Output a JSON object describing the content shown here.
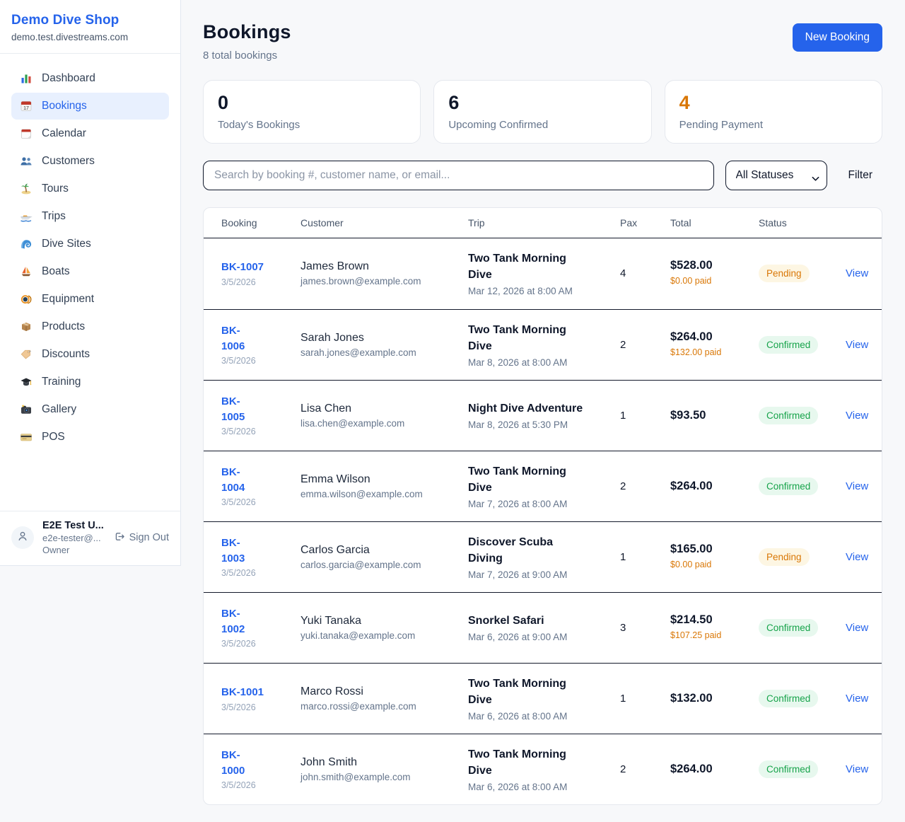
{
  "brand": {
    "name": "Demo Dive Shop",
    "domain": "demo.test.divestreams.com"
  },
  "sidebar": {
    "items": [
      {
        "label": "Dashboard",
        "icon": "bar-chart-icon",
        "active": false
      },
      {
        "label": "Bookings",
        "icon": "calendar-17-icon",
        "active": true
      },
      {
        "label": "Calendar",
        "icon": "tear-calendar-icon",
        "active": false
      },
      {
        "label": "Customers",
        "icon": "people-icon",
        "active": false
      },
      {
        "label": "Tours",
        "icon": "island-icon",
        "active": false
      },
      {
        "label": "Trips",
        "icon": "speedboat-icon",
        "active": false
      },
      {
        "label": "Dive Sites",
        "icon": "wave-icon",
        "active": false
      },
      {
        "label": "Boats",
        "icon": "sailboat-icon",
        "active": false
      },
      {
        "label": "Equipment",
        "icon": "dive-mask-icon",
        "active": false
      },
      {
        "label": "Products",
        "icon": "package-icon",
        "active": false
      },
      {
        "label": "Discounts",
        "icon": "tag-icon",
        "active": false
      },
      {
        "label": "Training",
        "icon": "grad-cap-icon",
        "active": false
      },
      {
        "label": "Gallery",
        "icon": "camera-icon",
        "active": false
      },
      {
        "label": "POS",
        "icon": "credit-card-icon",
        "active": false
      }
    ],
    "user": {
      "name": "E2E Test U...",
      "email": "e2e-tester@...",
      "role": "Owner",
      "sign_out_label": "Sign Out"
    }
  },
  "header": {
    "title": "Bookings",
    "subtitle": "8 total bookings",
    "new_booking_label": "New Booking"
  },
  "stats": [
    {
      "value": "0",
      "label": "Today's Bookings",
      "color": "#0f172a"
    },
    {
      "value": "6",
      "label": "Upcoming Confirmed",
      "color": "#0f172a"
    },
    {
      "value": "4",
      "label": "Pending Payment",
      "color": "#d97706"
    }
  ],
  "filters": {
    "search_placeholder": "Search by booking #, customer name, or email...",
    "status_selected": "All Statuses",
    "filter_label": "Filter"
  },
  "table": {
    "columns": [
      "Booking",
      "Customer",
      "Trip",
      "Pax",
      "Total",
      "Status"
    ],
    "view_label": "View",
    "rows": [
      {
        "id": "BK-1007",
        "id_two_line": false,
        "date": "3/5/2026",
        "customer": "James Brown",
        "email": "james.brown@example.com",
        "trip": "Two Tank Morning Dive",
        "trip_datetime": "Mar 12, 2026 at 8:00 AM",
        "pax": "4",
        "total": "$528.00",
        "paid": "$0.00 paid",
        "status": "Pending"
      },
      {
        "id": "BK-1006",
        "id_two_line": true,
        "date": "3/5/2026",
        "customer": "Sarah Jones",
        "email": "sarah.jones@example.com",
        "trip": "Two Tank Morning Dive",
        "trip_datetime": "Mar 8, 2026 at 8:00 AM",
        "pax": "2",
        "total": "$264.00",
        "paid": "$132.00 paid",
        "status": "Confirmed"
      },
      {
        "id": "BK-1005",
        "id_two_line": true,
        "date": "3/5/2026",
        "customer": "Lisa Chen",
        "email": "lisa.chen@example.com",
        "trip": "Night Dive Adventure",
        "trip_datetime": "Mar 8, 2026 at 5:30 PM",
        "pax": "1",
        "total": "$93.50",
        "paid": "",
        "status": "Confirmed"
      },
      {
        "id": "BK-1004",
        "id_two_line": true,
        "date": "3/5/2026",
        "customer": "Emma Wilson",
        "email": "emma.wilson@example.com",
        "trip": "Two Tank Morning Dive",
        "trip_datetime": "Mar 7, 2026 at 8:00 AM",
        "pax": "2",
        "total": "$264.00",
        "paid": "",
        "status": "Confirmed"
      },
      {
        "id": "BK-1003",
        "id_two_line": true,
        "date": "3/5/2026",
        "customer": "Carlos Garcia",
        "email": "carlos.garcia@example.com",
        "trip": "Discover Scuba Diving",
        "trip_datetime": "Mar 7, 2026 at 9:00 AM",
        "pax": "1",
        "total": "$165.00",
        "paid": "$0.00 paid",
        "status": "Pending"
      },
      {
        "id": "BK-1002",
        "id_two_line": true,
        "date": "3/5/2026",
        "customer": "Yuki Tanaka",
        "email": "yuki.tanaka@example.com",
        "trip": "Snorkel Safari",
        "trip_datetime": "Mar 6, 2026 at 9:00 AM",
        "pax": "3",
        "total": "$214.50",
        "paid": "$107.25 paid",
        "status": "Confirmed"
      },
      {
        "id": "BK-1001",
        "id_two_line": false,
        "date": "3/5/2026",
        "customer": "Marco Rossi",
        "email": "marco.rossi@example.com",
        "trip": "Two Tank Morning Dive",
        "trip_datetime": "Mar 6, 2026 at 8:00 AM",
        "pax": "1",
        "total": "$132.00",
        "paid": "",
        "status": "Confirmed"
      },
      {
        "id": "BK-1000",
        "id_two_line": true,
        "date": "3/5/2026",
        "customer": "John Smith",
        "email": "john.smith@example.com",
        "trip": "Two Tank Morning Dive",
        "trip_datetime": "Mar 6, 2026 at 8:00 AM",
        "pax": "2",
        "total": "$264.00",
        "paid": "",
        "status": "Confirmed"
      }
    ]
  },
  "colors": {
    "accent_blue": "#2563eb",
    "active_nav_bg": "#e8f0fe",
    "pending_text": "#d97706",
    "pending_bg": "#fdf6e3",
    "confirmed_text": "#16a34a",
    "confirmed_bg": "#e7f8ee",
    "page_bg": "#f7f8fa",
    "dark_text": "#0f172a",
    "muted_text": "#64748b"
  }
}
